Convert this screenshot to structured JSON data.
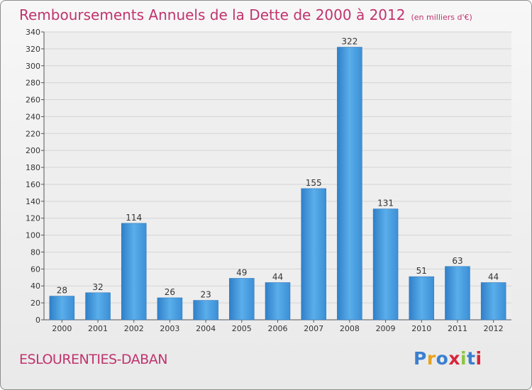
{
  "chart_data": {
    "type": "bar",
    "title": "Remboursements Annuels de la Dette de 2000 à 2012",
    "subtitle": "(en milliers d'€)",
    "xlabel": "",
    "ylabel": "",
    "categories": [
      "2000",
      "2001",
      "2002",
      "2003",
      "2004",
      "2005",
      "2006",
      "2007",
      "2008",
      "2009",
      "2010",
      "2011",
      "2012"
    ],
    "values": [
      28,
      32,
      114,
      26,
      23,
      49,
      44,
      155,
      322,
      131,
      51,
      63,
      44
    ],
    "ylim": [
      0,
      340
    ],
    "yticks": [
      0,
      20,
      40,
      60,
      80,
      100,
      120,
      140,
      160,
      180,
      200,
      220,
      240,
      260,
      280,
      300,
      320,
      340
    ],
    "grid": true,
    "legend": "none",
    "bar_color": "#4a9de0"
  },
  "footer": {
    "commune": "ESLOURENTIES-DABAN",
    "logo_text": "Proxiti",
    "logo_colors": [
      "#3a7fd0",
      "#e8a21c",
      "#3a7fd0",
      "#d6263b",
      "#8cc63f",
      "#3a7fd0",
      "#d6263b"
    ]
  }
}
